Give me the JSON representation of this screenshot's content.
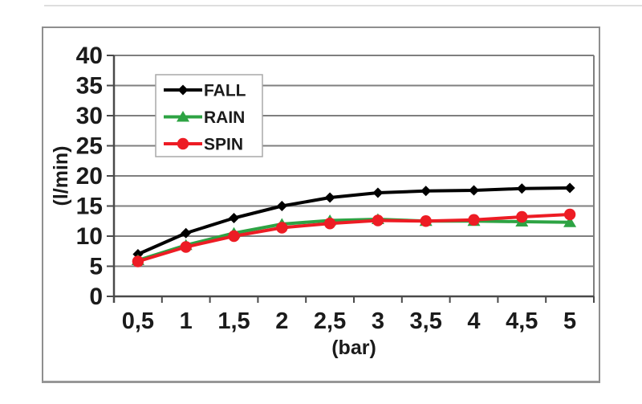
{
  "page": {
    "background": "#ffffff",
    "top_rule_color": "#dedede"
  },
  "chart_data": {
    "type": "line",
    "title": "",
    "xlabel": "(bar)",
    "ylabel": "(l/min)",
    "x": [
      0.5,
      1,
      1.5,
      2,
      2.5,
      3,
      3.5,
      4,
      4.5,
      5
    ],
    "x_tick_labels": [
      "0,5",
      "1",
      "1,5",
      "2",
      "2,5",
      "3",
      "3,5",
      "4",
      "4,5",
      "5"
    ],
    "y_ticks": [
      0,
      5,
      10,
      15,
      20,
      25,
      30,
      35,
      40
    ],
    "ylim": [
      0,
      40
    ],
    "grid": true,
    "legend_position": "upper-left-inside",
    "series": [
      {
        "name": "FALL",
        "color": "#000000",
        "marker": "diamond",
        "values": [
          7.0,
          10.5,
          13.0,
          15.0,
          16.4,
          17.2,
          17.5,
          17.6,
          17.9,
          18.0
        ]
      },
      {
        "name": "RAIN",
        "color": "#2DA343",
        "marker": "triangle",
        "values": [
          6.0,
          8.5,
          10.5,
          12.0,
          12.6,
          12.8,
          12.5,
          12.5,
          12.4,
          12.3
        ]
      },
      {
        "name": "SPIN",
        "color": "#ED1C24",
        "marker": "circle",
        "values": [
          5.8,
          8.2,
          10.0,
          11.4,
          12.1,
          12.6,
          12.5,
          12.7,
          13.2,
          13.6
        ]
      }
    ]
  },
  "style": {
    "grid_color": "#7f7f7f",
    "axis_color": "#4a4a4a",
    "text_color": "#1b1b1b",
    "frame_border_color": "#8e8e8e",
    "legend_border_color": "#a8a8a8",
    "plot_background": "#ffffff"
  }
}
